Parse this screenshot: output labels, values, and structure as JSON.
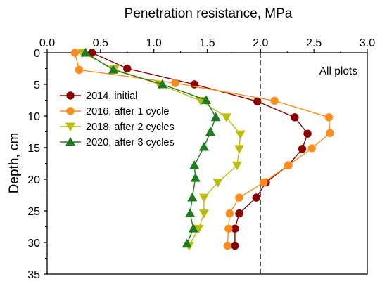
{
  "chart_data": {
    "type": "line",
    "xlabel": "Penetration resistance, MPa",
    "ylabel": "Depth, cm",
    "xlim": [
      0.0,
      3.0
    ],
    "ylim": [
      0,
      35
    ],
    "y_inverted": true,
    "x_axis_position": "top",
    "x_ticks": [
      "0.0",
      "0.5",
      "1.0",
      "1.5",
      "2.0",
      "2.5",
      "3.0"
    ],
    "y_ticks": [
      "0",
      "5",
      "10",
      "15",
      "20",
      "25",
      "30",
      "35"
    ],
    "grid": false,
    "annotation": "All plots",
    "reference_line": {
      "x": 2.0,
      "style": "dashed"
    },
    "legend_position": "left",
    "series": [
      {
        "name": "2014, initial",
        "color": "#8b0000",
        "marker": "circle",
        "points": [
          {
            "x": 0.42,
            "y": 0
          },
          {
            "x": 0.75,
            "y": 2.5
          },
          {
            "x": 1.38,
            "y": 5
          },
          {
            "x": 1.97,
            "y": 7.7
          },
          {
            "x": 2.32,
            "y": 10.2
          },
          {
            "x": 2.44,
            "y": 12.8
          },
          {
            "x": 2.39,
            "y": 15.2
          },
          {
            "x": 2.26,
            "y": 17.8
          },
          {
            "x": 2.05,
            "y": 20.5
          },
          {
            "x": 1.96,
            "y": 22.9
          },
          {
            "x": 1.8,
            "y": 25.4
          },
          {
            "x": 1.76,
            "y": 27.8
          },
          {
            "x": 1.76,
            "y": 30.5
          }
        ]
      },
      {
        "name": "2016, after 1 cycle",
        "color": "#ff8c1a",
        "marker": "circle",
        "points": [
          {
            "x": 0.26,
            "y": 0
          },
          {
            "x": 0.3,
            "y": 2.7
          },
          {
            "x": 1.2,
            "y": 4.8
          },
          {
            "x": 2.13,
            "y": 7.6
          },
          {
            "x": 2.64,
            "y": 10.2
          },
          {
            "x": 2.65,
            "y": 12.7
          },
          {
            "x": 2.48,
            "y": 15.1
          },
          {
            "x": 2.26,
            "y": 17.8
          },
          {
            "x": 2.03,
            "y": 20.5
          },
          {
            "x": 1.8,
            "y": 22.9
          },
          {
            "x": 1.71,
            "y": 25.4
          },
          {
            "x": 1.7,
            "y": 27.8
          },
          {
            "x": 1.69,
            "y": 30.5
          }
        ]
      },
      {
        "name": "2018, after 2 cycles",
        "color": "#bcbc10",
        "marker": "triangle-down",
        "points": [
          {
            "x": 0.33,
            "y": 0
          },
          {
            "x": 0.63,
            "y": 2.6
          },
          {
            "x": 1.05,
            "y": 5
          },
          {
            "x": 1.44,
            "y": 7.6
          },
          {
            "x": 1.68,
            "y": 10.2
          },
          {
            "x": 1.81,
            "y": 12.9
          },
          {
            "x": 1.8,
            "y": 15.2
          },
          {
            "x": 1.78,
            "y": 17.8
          },
          {
            "x": 1.6,
            "y": 20.5
          },
          {
            "x": 1.47,
            "y": 22.9
          },
          {
            "x": 1.47,
            "y": 25.4
          },
          {
            "x": 1.42,
            "y": 27.8
          },
          {
            "x": 1.33,
            "y": 30.5
          }
        ]
      },
      {
        "name": "2020, after 3 cycles",
        "color": "#1e7b1e",
        "marker": "triangle-up",
        "points": [
          {
            "x": 0.36,
            "y": 0
          },
          {
            "x": 0.62,
            "y": 2.7
          },
          {
            "x": 1.08,
            "y": 5
          },
          {
            "x": 1.49,
            "y": 7.5
          },
          {
            "x": 1.58,
            "y": 10.2
          },
          {
            "x": 1.53,
            "y": 12.5
          },
          {
            "x": 1.47,
            "y": 14.9
          },
          {
            "x": 1.38,
            "y": 17.8
          },
          {
            "x": 1.39,
            "y": 19.8
          },
          {
            "x": 1.36,
            "y": 22.9
          },
          {
            "x": 1.34,
            "y": 25.4
          },
          {
            "x": 1.37,
            "y": 27.8
          },
          {
            "x": 1.31,
            "y": 30.2
          }
        ]
      }
    ]
  }
}
